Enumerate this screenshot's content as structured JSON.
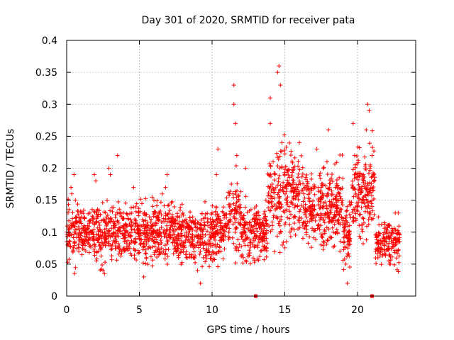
{
  "chart_data": {
    "type": "scatter",
    "title": "Day 301 of 2020, SRMTID for receiver pata",
    "xlabel": "GPS time / hours",
    "ylabel": "SRMTID / TECUs",
    "xlim": [
      0,
      24
    ],
    "ylim": [
      0,
      0.4
    ],
    "x_ticks": [
      0,
      5,
      10,
      15,
      20
    ],
    "x_tick_labels": [
      "0",
      "5",
      "10",
      "15",
      "20"
    ],
    "y_ticks": [
      0,
      0.05,
      0.1,
      0.15,
      0.2,
      0.25,
      0.3,
      0.35,
      0.4
    ],
    "y_tick_labels": [
      "0",
      "0.05",
      "0.1",
      "0.15",
      "0.2",
      "0.25",
      "0.3",
      "0.35",
      "0.4"
    ],
    "grid": true,
    "marker": "+",
    "colors": {
      "series": "#ff0000",
      "grid": "#a0a0a0",
      "axis": "#000000"
    },
    "series": [
      {
        "name": "SRMTID",
        "description": "dense scatter of roughly 2500 SRMTID samples; typical value near 0.1 TECU, noted peaks listed in points",
        "points": [
          [
            0.0,
            0.1
          ],
          [
            0.1,
            0.13
          ],
          [
            0.3,
            0.17
          ],
          [
            0.35,
            0.16
          ],
          [
            0.5,
            0.19
          ],
          [
            0.6,
            0.15
          ],
          [
            0.8,
            0.08
          ],
          [
            1.2,
            0.11
          ],
          [
            1.6,
            0.13
          ],
          [
            1.9,
            0.19
          ],
          [
            2.0,
            0.18
          ],
          [
            2.4,
            0.09
          ],
          [
            2.5,
            0.04
          ],
          [
            2.6,
            0.035
          ],
          [
            2.9,
            0.2
          ],
          [
            3.0,
            0.19
          ],
          [
            3.3,
            0.11
          ],
          [
            3.5,
            0.22
          ],
          [
            3.9,
            0.13
          ],
          [
            4.2,
            0.1
          ],
          [
            4.6,
            0.17
          ],
          [
            5.0,
            0.09
          ],
          [
            5.3,
            0.03
          ],
          [
            5.6,
            0.11
          ],
          [
            6.0,
            0.15
          ],
          [
            6.4,
            0.1
          ],
          [
            6.8,
            0.17
          ],
          [
            6.9,
            0.19
          ],
          [
            7.3,
            0.12
          ],
          [
            7.7,
            0.09
          ],
          [
            8.2,
            0.12
          ],
          [
            8.6,
            0.08
          ],
          [
            9.0,
            0.04
          ],
          [
            9.2,
            0.02
          ],
          [
            9.5,
            0.11
          ],
          [
            10.0,
            0.13
          ],
          [
            10.3,
            0.19
          ],
          [
            10.4,
            0.23
          ],
          [
            10.8,
            0.13
          ],
          [
            11.2,
            0.16
          ],
          [
            11.5,
            0.33
          ],
          [
            11.5,
            0.3
          ],
          [
            11.6,
            0.27
          ],
          [
            11.7,
            0.22
          ],
          [
            12.0,
            0.13
          ],
          [
            12.3,
            0.2
          ],
          [
            12.7,
            0.11
          ],
          [
            13.0,
            0.09
          ],
          [
            13.3,
            0.12
          ],
          [
            13.7,
            0.15
          ],
          [
            14.0,
            0.27
          ],
          [
            14.0,
            0.31
          ],
          [
            14.2,
            0.21
          ],
          [
            14.5,
            0.35
          ],
          [
            14.6,
            0.36
          ],
          [
            14.7,
            0.33
          ],
          [
            14.8,
            0.24
          ],
          [
            15.0,
            0.19
          ],
          [
            15.3,
            0.14
          ],
          [
            15.6,
            0.17
          ],
          [
            16.0,
            0.24
          ],
          [
            16.3,
            0.16
          ],
          [
            16.8,
            0.14
          ],
          [
            17.2,
            0.23
          ],
          [
            17.5,
            0.17
          ],
          [
            17.9,
            0.21
          ],
          [
            18.0,
            0.26
          ],
          [
            18.3,
            0.14
          ],
          [
            18.7,
            0.12
          ],
          [
            19.2,
            0.05
          ],
          [
            19.3,
            0.02
          ],
          [
            19.7,
            0.27
          ],
          [
            19.8,
            0.22
          ],
          [
            20.0,
            0.14
          ],
          [
            20.4,
            0.19
          ],
          [
            20.6,
            0.26
          ],
          [
            20.7,
            0.3
          ],
          [
            20.8,
            0.29
          ],
          [
            21.0,
            0.22
          ],
          [
            21.1,
            0.19
          ],
          [
            21.4,
            0.06
          ],
          [
            21.8,
            0.09
          ],
          [
            22.2,
            0.05
          ],
          [
            22.5,
            0.1
          ],
          [
            22.8,
            0.13
          ]
        ]
      }
    ],
    "marker_points": [
      {
        "x": 13.0,
        "y": 0.0
      },
      {
        "x": 21.0,
        "y": 0.0
      }
    ]
  }
}
